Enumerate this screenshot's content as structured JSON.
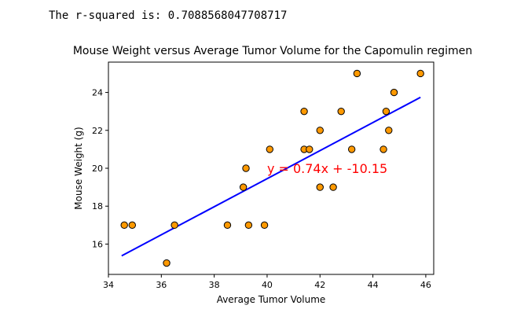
{
  "output": {
    "text": "The r-squared is: 0.7088568047708717"
  },
  "chart_data": {
    "type": "scatter",
    "title": "Mouse Weight versus Average Tumor Volume for the Capomulin regimen",
    "xlabel": "Average Tumor Volume",
    "ylabel": "Mouse Weight (g)",
    "xlim": [
      34,
      46.3
    ],
    "ylim": [
      14.4,
      25.6
    ],
    "xticks": [
      34,
      36,
      38,
      40,
      42,
      44,
      46
    ],
    "yticks": [
      16,
      18,
      20,
      22,
      24
    ],
    "grid": false,
    "points": [
      {
        "x": 34.6,
        "y": 17
      },
      {
        "x": 34.9,
        "y": 17
      },
      {
        "x": 36.2,
        "y": 15
      },
      {
        "x": 36.5,
        "y": 17
      },
      {
        "x": 38.5,
        "y": 17
      },
      {
        "x": 39.1,
        "y": 19
      },
      {
        "x": 39.2,
        "y": 20
      },
      {
        "x": 39.3,
        "y": 17
      },
      {
        "x": 39.9,
        "y": 17
      },
      {
        "x": 40.1,
        "y": 21
      },
      {
        "x": 41.4,
        "y": 21
      },
      {
        "x": 41.4,
        "y": 23
      },
      {
        "x": 41.6,
        "y": 21
      },
      {
        "x": 42.0,
        "y": 22
      },
      {
        "x": 42.0,
        "y": 19
      },
      {
        "x": 42.5,
        "y": 19
      },
      {
        "x": 42.8,
        "y": 23
      },
      {
        "x": 43.2,
        "y": 21
      },
      {
        "x": 43.4,
        "y": 25
      },
      {
        "x": 44.4,
        "y": 21
      },
      {
        "x": 44.5,
        "y": 23
      },
      {
        "x": 44.6,
        "y": 22
      },
      {
        "x": 44.8,
        "y": 24
      },
      {
        "x": 45.8,
        "y": 25
      }
    ],
    "regression": {
      "slope": 0.74,
      "intercept": -10.15,
      "x_range": [
        34.5,
        45.8
      ],
      "equation_label": "y = 0.74x + -10.15",
      "label_position": {
        "x": 40,
        "y": 20
      }
    },
    "colors": {
      "marker_fill": "#ff9900",
      "marker_edge": "#000000",
      "line": "#0000ff",
      "equation": "#ff0000"
    }
  }
}
